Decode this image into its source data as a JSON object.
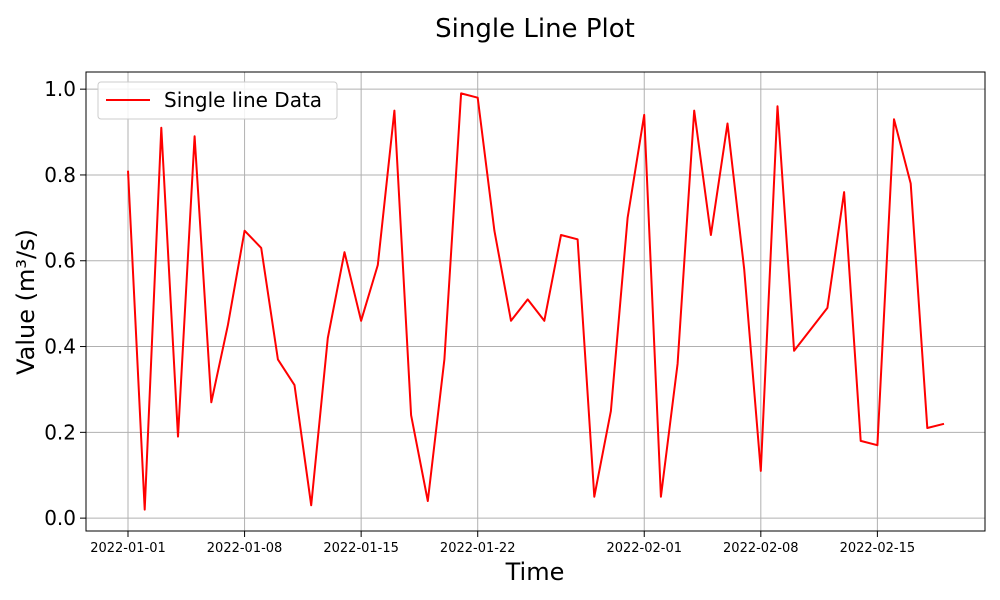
{
  "chart_data": {
    "type": "line",
    "title": "Single Line Plot",
    "xlabel": "Time",
    "ylabel": "Value (m³/s)",
    "x_start": "2022-01-01",
    "x_end": "2022-02-19",
    "ylim": [
      -0.03,
      1.04
    ],
    "yticks": [
      0.0,
      0.2,
      0.4,
      0.6,
      0.8,
      1.0
    ],
    "ytick_labels": [
      "0.0",
      "0.2",
      "0.4",
      "0.6",
      "0.8",
      "1.0"
    ],
    "xticks": [
      "2022-01-01",
      "2022-01-08",
      "2022-01-15",
      "2022-01-22",
      "2022-02-01",
      "2022-02-08",
      "2022-02-15"
    ],
    "xtick_labels": [
      "2022-01-01",
      "2022-01-08",
      "2022-01-15",
      "2022-01-22",
      "2022-02-01",
      "2022-02-08",
      "2022-02-15"
    ],
    "grid": true,
    "legend_position": "upper-left",
    "series": [
      {
        "name": "Single line Data",
        "color": "#ff0000",
        "x": [
          "2022-01-01",
          "2022-01-02",
          "2022-01-03",
          "2022-01-04",
          "2022-01-05",
          "2022-01-06",
          "2022-01-07",
          "2022-01-08",
          "2022-01-09",
          "2022-01-10",
          "2022-01-11",
          "2022-01-12",
          "2022-01-13",
          "2022-01-14",
          "2022-01-15",
          "2022-01-16",
          "2022-01-17",
          "2022-01-18",
          "2022-01-19",
          "2022-01-20",
          "2022-01-21",
          "2022-01-22",
          "2022-01-23",
          "2022-01-24",
          "2022-01-25",
          "2022-01-26",
          "2022-01-27",
          "2022-01-28",
          "2022-01-29",
          "2022-01-30",
          "2022-01-31",
          "2022-02-01",
          "2022-02-02",
          "2022-02-03",
          "2022-02-04",
          "2022-02-05",
          "2022-02-06",
          "2022-02-07",
          "2022-02-08",
          "2022-02-09",
          "2022-02-10",
          "2022-02-12",
          "2022-02-13",
          "2022-02-14",
          "2022-02-15",
          "2022-02-16",
          "2022-02-17",
          "2022-02-18",
          "2022-02-19"
        ],
        "values": [
          0.81,
          0.02,
          0.91,
          0.19,
          0.89,
          0.27,
          0.45,
          0.67,
          0.63,
          0.37,
          0.31,
          0.03,
          0.42,
          0.62,
          0.46,
          0.59,
          0.95,
          0.24,
          0.04,
          0.37,
          0.99,
          0.98,
          0.67,
          0.46,
          0.51,
          0.46,
          0.66,
          0.65,
          0.05,
          0.25,
          0.7,
          0.94,
          0.05,
          0.36,
          0.95,
          0.66,
          0.92,
          0.58,
          0.11,
          0.96,
          0.39,
          0.49,
          0.76,
          0.18,
          0.17,
          0.93,
          0.78,
          0.21,
          0.22
        ]
      }
    ]
  }
}
